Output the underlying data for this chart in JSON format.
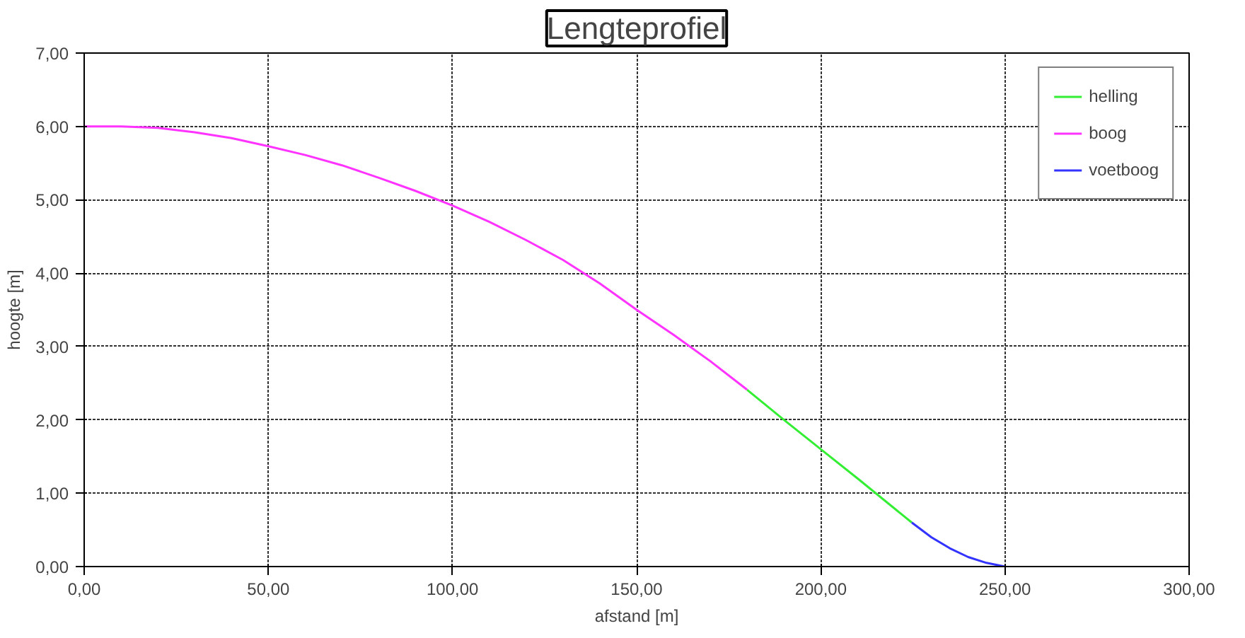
{
  "chart_data": {
    "type": "line",
    "title": "Lengteprofiel",
    "xlabel": "afstand [m]",
    "ylabel": "hoogte [m]",
    "xlim": [
      0,
      300
    ],
    "ylim": [
      0,
      7
    ],
    "xticks": [
      {
        "value": 0,
        "label": "0,00"
      },
      {
        "value": 50,
        "label": "50,00"
      },
      {
        "value": 100,
        "label": "100,00"
      },
      {
        "value": 150,
        "label": "150,00"
      },
      {
        "value": 200,
        "label": "200,00"
      },
      {
        "value": 250,
        "label": "250,00"
      },
      {
        "value": 300,
        "label": "300,00"
      }
    ],
    "yticks": [
      {
        "value": 0,
        "label": "0,00"
      },
      {
        "value": 1,
        "label": "1,00"
      },
      {
        "value": 2,
        "label": "2,00"
      },
      {
        "value": 3,
        "label": "3,00"
      },
      {
        "value": 4,
        "label": "4,00"
      },
      {
        "value": 5,
        "label": "5,00"
      },
      {
        "value": 6,
        "label": "6,00"
      },
      {
        "value": 7,
        "label": "7,00"
      }
    ],
    "grid": true,
    "legend": "top right",
    "line_style": "solid",
    "marker": "none",
    "series": [
      {
        "name": "helling",
        "color": "#33ee33",
        "x": [
          180,
          190,
          200,
          210,
          224.7
        ],
        "values": [
          2.41,
          2.0,
          1.6,
          1.2,
          0.6
        ]
      },
      {
        "name": "boog",
        "color": "#ff33ff",
        "x": [
          0,
          10,
          20,
          30,
          40,
          50,
          60,
          70,
          80,
          90,
          100,
          110,
          120,
          130,
          140,
          150,
          160,
          170,
          180
        ],
        "values": [
          6.0,
          6.0,
          5.98,
          5.92,
          5.84,
          5.73,
          5.61,
          5.47,
          5.3,
          5.12,
          4.92,
          4.7,
          4.45,
          4.18,
          3.86,
          3.5,
          3.16,
          2.8,
          2.41
        ]
      },
      {
        "name": "voetboog",
        "color": "#3333ff",
        "x": [
          224.7,
          230,
          235,
          240,
          245,
          250
        ],
        "values": [
          0.6,
          0.4,
          0.25,
          0.13,
          0.05,
          0.0
        ]
      }
    ]
  }
}
